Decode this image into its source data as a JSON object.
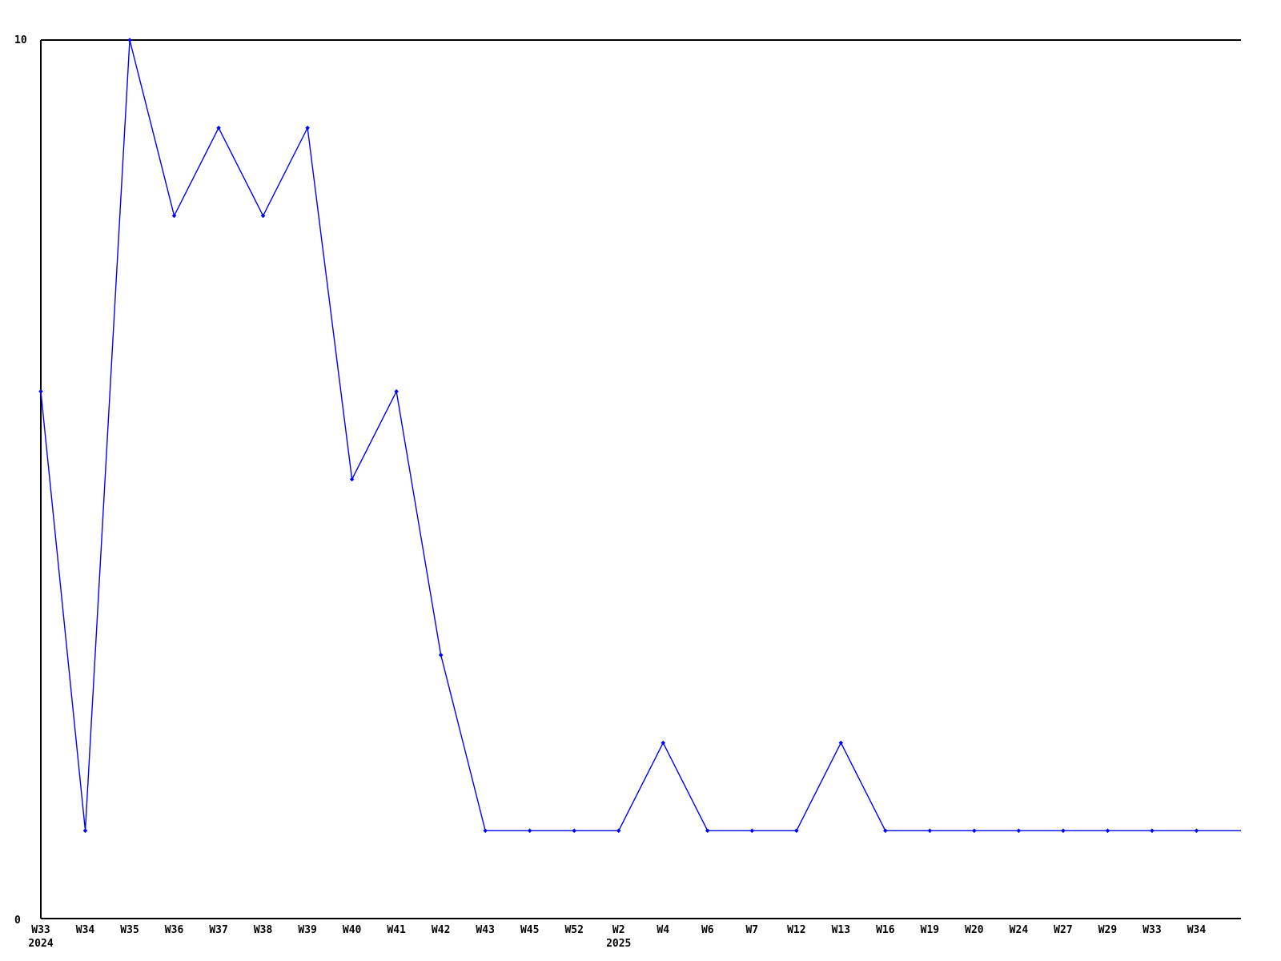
{
  "chart_data": {
    "type": "line",
    "title": "",
    "categories": [
      "W33",
      "W34",
      "W35",
      "W36",
      "W37",
      "W38",
      "W39",
      "W40",
      "W41",
      "W42",
      "W43",
      "W45",
      "W52",
      "W2",
      "W4",
      "W6",
      "W7",
      "W12",
      "W13",
      "W16",
      "W19",
      "W20",
      "W24",
      "W27",
      "W29",
      "W33",
      "W34"
    ],
    "values": [
      6,
      1,
      10,
      8,
      9,
      8,
      9,
      5,
      6,
      3,
      1,
      1,
      1,
      1,
      2,
      1,
      1,
      1,
      2,
      1,
      1,
      1,
      1,
      1,
      1,
      1,
      1
    ],
    "year_markers": [
      {
        "category_index": 0,
        "label": "2024"
      },
      {
        "category_index": 13,
        "label": "2025"
      }
    ],
    "y_axis": {
      "min": 0,
      "max": 10,
      "min_label": "0",
      "max_label": "10"
    },
    "xlabel": "",
    "ylabel": "",
    "line_color": "#0000ff",
    "axis_color": "#000000",
    "marker": "diamond",
    "grid": false,
    "legend": null,
    "line_extends_flat_to_right_edge": true
  }
}
